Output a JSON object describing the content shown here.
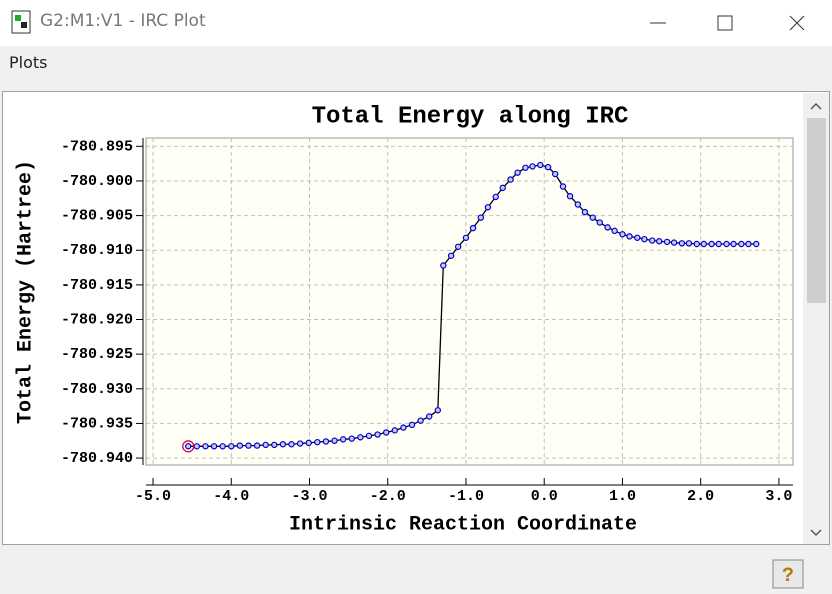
{
  "window": {
    "title": "G2:M1:V1 - IRC Plot",
    "menu": [
      "Plots"
    ]
  },
  "chart_data": {
    "type": "line",
    "title": "Total Energy along IRC",
    "x_label": "Intrinsic Reaction Coordinate",
    "y_label": "Total Energy (Hartree)",
    "x": [
      -4.55,
      -4.44,
      -4.33,
      -4.22,
      -4.11,
      -4.0,
      -3.89,
      -3.78,
      -3.67,
      -3.56,
      -3.45,
      -3.34,
      -3.23,
      -3.12,
      -3.01,
      -2.9,
      -2.79,
      -2.68,
      -2.57,
      -2.46,
      -2.35,
      -2.24,
      -2.13,
      -2.02,
      -1.91,
      -1.8,
      -1.69,
      -1.58,
      -1.47,
      -1.36,
      -1.29,
      -1.19,
      -1.1,
      -1.0,
      -0.91,
      -0.81,
      -0.72,
      -0.62,
      -0.53,
      -0.43,
      -0.34,
      -0.24,
      -0.15,
      -0.05,
      0.05,
      0.14,
      0.24,
      0.33,
      0.43,
      0.52,
      0.62,
      0.71,
      0.81,
      0.9,
      1.0,
      1.09,
      1.19,
      1.28,
      1.38,
      1.47,
      1.57,
      1.66,
      1.76,
      1.85,
      1.95,
      2.04,
      2.14,
      2.23,
      2.33,
      2.42,
      2.52,
      2.61,
      2.71
    ],
    "series": [
      {
        "color": "#0000cc",
        "line_color": "#000000",
        "values": [
          -780.9383,
          -780.9383,
          -780.9383,
          -780.9383,
          -780.9383,
          -780.9383,
          -780.9382,
          -780.9382,
          -780.9382,
          -780.9381,
          -780.9381,
          -780.938,
          -780.938,
          -780.9379,
          -780.9378,
          -780.9377,
          -780.9376,
          -780.9375,
          -780.9373,
          -780.9372,
          -780.937,
          -780.9368,
          -780.9366,
          -780.9363,
          -780.936,
          -780.9356,
          -780.9352,
          -780.9346,
          -780.934,
          -780.9331,
          -780.9122,
          -780.9108,
          -780.9095,
          -780.9082,
          -780.9068,
          -780.9053,
          -780.9038,
          -780.9023,
          -780.901,
          -780.8998,
          -780.8988,
          -780.8981,
          -780.8979,
          -780.8977,
          -780.898,
          -780.899,
          -780.9008,
          -780.9022,
          -780.9034,
          -780.9045,
          -780.9053,
          -780.906,
          -780.9067,
          -780.9072,
          -780.9077,
          -780.908,
          -780.9082,
          -780.9084,
          -780.9086,
          -780.9087,
          -780.9088,
          -780.9089,
          -780.909,
          -780.909,
          -780.9091,
          -780.9091,
          -780.9091,
          -780.9091,
          -780.9091,
          -780.9091,
          -780.9091,
          -780.9091,
          -780.9091
        ]
      }
    ],
    "highlight_index": 0,
    "highlight_color": "#e0004a",
    "xlim": [
      -5.09,
      3.18
    ],
    "ylim": [
      -780.941,
      -780.8938
    ],
    "xticks": [
      {
        "value": -5,
        "label": "-5.0"
      },
      {
        "value": -4,
        "label": "-4.0"
      },
      {
        "value": -3,
        "label": "-3.0"
      },
      {
        "value": -2,
        "label": "-2.0"
      },
      {
        "value": -1,
        "label": "-1.0"
      },
      {
        "value": 0,
        "label": "0.0"
      },
      {
        "value": 1,
        "label": "1.0"
      },
      {
        "value": 2,
        "label": "2.0"
      },
      {
        "value": 3,
        "label": "3.0"
      }
    ],
    "yticks": [
      {
        "value": -780.895,
        "label": "-780.895"
      },
      {
        "value": -780.9,
        "label": "-780.900"
      },
      {
        "value": -780.905,
        "label": "-780.905"
      },
      {
        "value": -780.91,
        "label": "-780.910"
      },
      {
        "value": -780.915,
        "label": "-780.915"
      },
      {
        "value": -780.92,
        "label": "-780.920"
      },
      {
        "value": -780.925,
        "label": "-780.925"
      },
      {
        "value": -780.93,
        "label": "-780.930"
      },
      {
        "value": -780.935,
        "label": "-780.935"
      },
      {
        "value": -780.94,
        "label": "-780.940"
      }
    ],
    "grid": true
  }
}
